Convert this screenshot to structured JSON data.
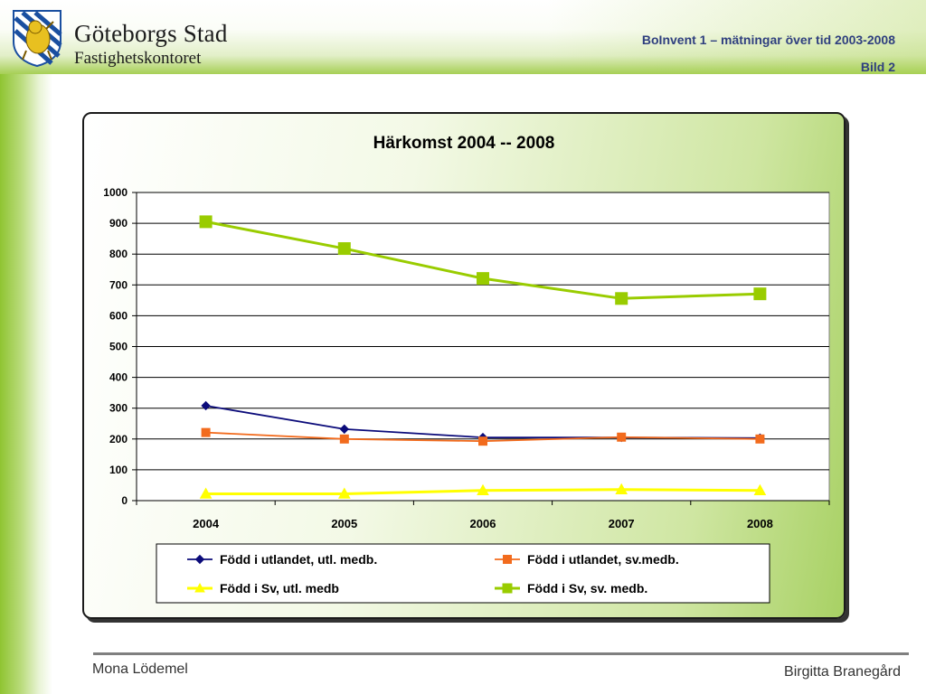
{
  "header": {
    "org_name": "Göteborgs Stad",
    "org_department": "Fastighetskontoret",
    "presentation_title": "BoInvent 1 – mätningar över tid 2003-2008",
    "slide_number": "Bild 2",
    "logo_icon": "goteborg-lion-shield-icon"
  },
  "chart_data": {
    "type": "line",
    "title": "Härkomst 2004 -- 2008",
    "xlabel": "",
    "ylabel": "",
    "categories": [
      "2004",
      "2005",
      "2006",
      "2007",
      "2008"
    ],
    "ylim": [
      0,
      1000
    ],
    "yticks": [
      0,
      100,
      200,
      300,
      400,
      500,
      600,
      700,
      800,
      900,
      1000
    ],
    "grid": true,
    "legend_position": "bottom",
    "series": [
      {
        "name": "Född i utlandet, utl. medb.",
        "values": [
          308,
          232,
          205,
          205,
          203
        ],
        "color": "#0b0b7a",
        "marker": "diamond"
      },
      {
        "name": "Född i utlandet, sv.medb.",
        "values": [
          221,
          200,
          193,
          206,
          200
        ],
        "color": "#f26b1d",
        "marker": "square"
      },
      {
        "name": "Född i Sv, utl. medb",
        "values": [
          22,
          22,
          33,
          36,
          33
        ],
        "color": "#ffff00",
        "marker": "triangle"
      },
      {
        "name": "Född i Sv, sv. medb.",
        "values": [
          905,
          818,
          721,
          656,
          671
        ],
        "color": "#99cc00",
        "marker": "square"
      }
    ]
  },
  "footer": {
    "left": "Mona Lödemel",
    "right": "Birgitta Branegård"
  },
  "colors": {
    "accent_green": "#8fc431",
    "header_text": "#2f3f7f"
  }
}
